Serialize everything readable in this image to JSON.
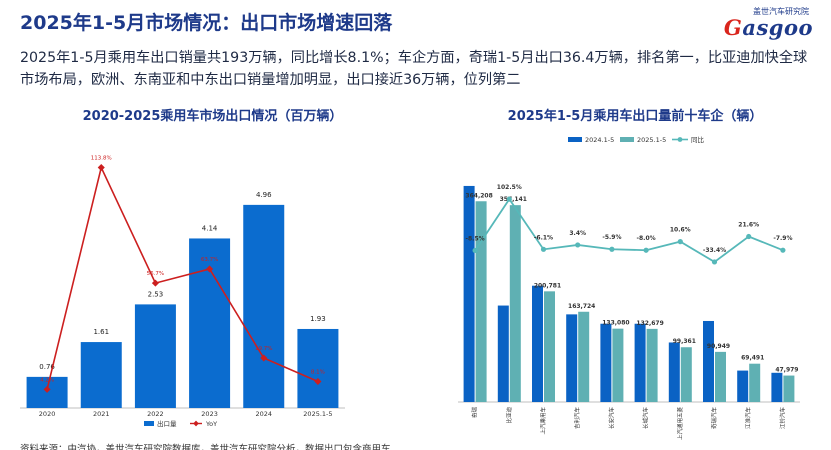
{
  "page": {
    "title": "2025年1-5月市场情况：出口市场增速回落",
    "summary": "2025年1-5月乘用车出口销量共193万辆，同比增长8.1%；车企方面，奇瑞1-5月出口36.4万辆，排名第一，比亚迪加快全球市场布局，欧洲、东南亚和中东出口销量增加明显，出口接近36万辆，位列第二",
    "source": "资料来源：中汽协，盖世汽车研究院数据库，盖世汽车研究院分析，数据出口包含商用车"
  },
  "logo": {
    "cn": "盖世汽车研究院",
    "en_mark": "G",
    "en_rest": "asgoo"
  },
  "colors": {
    "title": "#1e3a8a",
    "bar_blue": "#0b6ccf",
    "line_red": "#cc1f1f",
    "bar_teal": "#5fb0b3",
    "yoy_line": "#56b8b9",
    "dark_blue": "#0a62c4"
  },
  "chart_data": [
    {
      "type": "bar",
      "title": "2020-2025乘用车市场出口情况（百万辆）",
      "categories": [
        "2020",
        "2021",
        "2022",
        "2023",
        "2024",
        "2025.1-5"
      ],
      "series": [
        {
          "name": "出口量",
          "kind": "bar",
          "values": [
            0.76,
            1.61,
            2.53,
            4.14,
            4.96,
            1.93
          ],
          "labels": [
            "0.76",
            "1.61",
            "2.53",
            "4.14",
            "4.96",
            "1.93"
          ]
        },
        {
          "name": "YoY",
          "kind": "line",
          "values": [
            4.2,
            113.8,
            56.7,
            63.7,
            19.7,
            8.1
          ],
          "labels": [
            "4.2%",
            "113.8%",
            "56.7%",
            "63.7%",
            "19.7%",
            "8.1%"
          ]
        }
      ],
      "legend": "bottom"
    },
    {
      "type": "bar",
      "title": "2025年1-5月乘用车出口量前十车企（辆）",
      "categories": [
        "奇瑞",
        "比亚迪",
        "上汽乘用车",
        "吉利汽车",
        "长安汽车",
        "长城汽车",
        "上汽通用五菱",
        "奇瑞汽车",
        "江淮汽车",
        "江铃汽车"
      ],
      "series": [
        {
          "name": "2024.1-5",
          "kind": "bar",
          "values": [
            392000,
            175000,
            211000,
            159000,
            142000,
            142000,
            108000,
            147000,
            57000,
            53000
          ]
        },
        {
          "name": "2025.1-5",
          "kind": "bar",
          "values": [
            364208,
            357141,
            200781,
            163724,
            133080,
            132679,
            99361,
            90949,
            69491,
            47979
          ],
          "labels": [
            "364,208",
            "357,141",
            "200,781",
            "163,724",
            "133,080",
            "132,679",
            "99,361",
            "90,949",
            "69,491",
            "47,979"
          ]
        },
        {
          "name": "同比",
          "kind": "line",
          "values": [
            -8.5,
            102.5,
            -6.1,
            3.4,
            -5.9,
            -8.0,
            10.6,
            -33.4,
            21.6,
            -7.9
          ],
          "labels": [
            "-8.5%",
            "102.5%",
            "-6.1%",
            "3.4%",
            "-5.9%",
            "-8.0%",
            "10.6%",
            "-33.4%",
            "21.6%",
            "-7.9%"
          ]
        }
      ],
      "legend": "top"
    }
  ]
}
